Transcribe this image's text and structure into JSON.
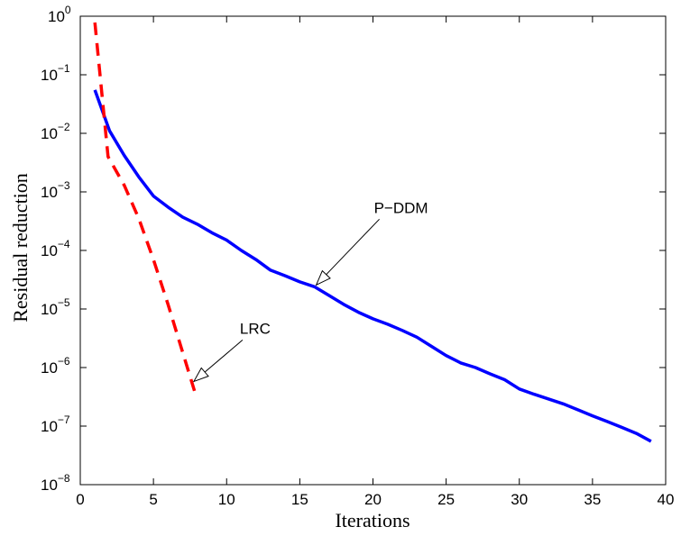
{
  "chart_data": {
    "type": "line",
    "title": "",
    "xlabel": "Iterations",
    "ylabel": "Residual reduction",
    "xlim": [
      0,
      40
    ],
    "ylim": [
      1e-08,
      1
    ],
    "yscale": "log",
    "grid": false,
    "legend": "none",
    "x_ticks": [
      "0",
      "5",
      "10",
      "15",
      "20",
      "25",
      "30",
      "35",
      "40"
    ],
    "y_ticks": [
      {
        "base": "10",
        "exp": "0"
      },
      {
        "base": "10",
        "exp": "−1"
      },
      {
        "base": "10",
        "exp": "−2"
      },
      {
        "base": "10",
        "exp": "−3"
      },
      {
        "base": "10",
        "exp": "−4"
      },
      {
        "base": "10",
        "exp": "−5"
      },
      {
        "base": "10",
        "exp": "−6"
      },
      {
        "base": "10",
        "exp": "−7"
      },
      {
        "base": "10",
        "exp": "−8"
      }
    ],
    "series": [
      {
        "name": "P−DDM",
        "color": "#0000ff",
        "style": "solid",
        "x": [
          1,
          2,
          3,
          4,
          5,
          6,
          7,
          8,
          9,
          10,
          11,
          12,
          13,
          14,
          15,
          16,
          17,
          18,
          19,
          20,
          21,
          22,
          23,
          24,
          25,
          26,
          27,
          28,
          29,
          30,
          31,
          32,
          33,
          34,
          35,
          36,
          37,
          38,
          39
        ],
        "y": [
          0.055,
          0.011,
          0.0042,
          0.0018,
          0.00085,
          0.00055,
          0.00037,
          0.00028,
          0.0002,
          0.00015,
          0.0001,
          7e-05,
          4.6e-05,
          3.7e-05,
          2.9e-05,
          2.4e-05,
          1.7e-05,
          1.2e-05,
          8.8e-06,
          6.8e-06,
          5.5e-06,
          4.3e-06,
          3.3e-06,
          2.3e-06,
          1.6e-06,
          1.2e-06,
          1e-06,
          7.8e-07,
          6.2e-07,
          4.3e-07,
          3.5e-07,
          2.9e-07,
          2.4e-07,
          1.9e-07,
          1.5e-07,
          1.2e-07,
          9.5e-08,
          7.5e-08,
          5.5e-08
        ]
      },
      {
        "name": "LRC",
        "color": "#ff0000",
        "style": "dashed",
        "x": [
          1,
          1.9,
          3,
          4,
          5,
          6,
          7,
          7.8
        ],
        "y": [
          0.78,
          0.004,
          0.0013,
          0.00035,
          7e-05,
          1.2e-05,
          1.8e-06,
          4e-07
        ]
      }
    ],
    "annotations": [
      {
        "text": "P−DDM",
        "target": [
          16,
          2.4e-05
        ]
      },
      {
        "text": "LRC",
        "target": [
          7.7,
          6e-07
        ]
      }
    ]
  }
}
